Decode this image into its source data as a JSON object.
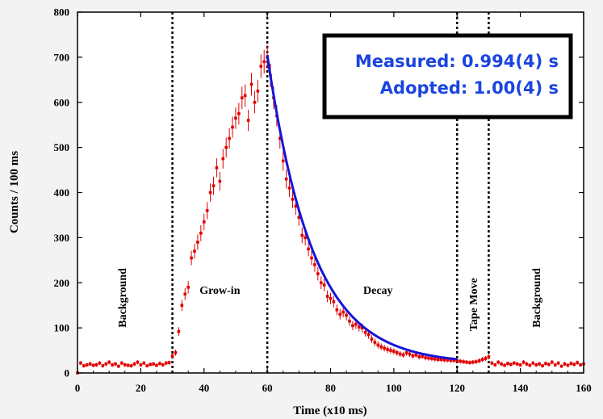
{
  "chart_data": {
    "type": "scatter",
    "title": "",
    "xlabel": "Time (x10 ms)",
    "ylabel": "Counts / 100 ms",
    "xlim": [
      0,
      160
    ],
    "ylim": [
      0,
      800
    ],
    "x_ticks": [
      0,
      20,
      40,
      60,
      80,
      100,
      120,
      140,
      160
    ],
    "y_ticks": [
      0,
      100,
      200,
      300,
      400,
      500,
      600,
      700,
      800
    ],
    "grid": false,
    "legend": "none",
    "colors": {
      "data": "#e00000",
      "fit": "#1515d8",
      "box_text": "#1a44e0"
    },
    "annotations": {
      "line1": "Measured: 0.994(4) s",
      "line2": "Adopted: 1.00(4) s"
    },
    "regions": [
      {
        "label": "Background",
        "x_center": 14,
        "vertical": true
      },
      {
        "label": "Grow-in",
        "x_center": 45,
        "vertical": false
      },
      {
        "label": "Decay",
        "x_center": 95,
        "vertical": false
      },
      {
        "label": "Tape Move",
        "x_center": 125,
        "vertical": true
      },
      {
        "label": "Background",
        "x_center": 145,
        "vertical": true
      }
    ],
    "boundaries": [
      30,
      60,
      120,
      130
    ],
    "series": [
      {
        "type": "scatter_errorbar",
        "x": [
          0,
          1,
          2,
          3,
          4,
          5,
          6,
          7,
          8,
          9,
          10,
          11,
          12,
          13,
          14,
          15,
          16,
          17,
          18,
          19,
          20,
          21,
          22,
          23,
          24,
          25,
          26,
          27,
          28,
          29,
          30,
          31,
          32,
          33,
          34,
          35,
          36,
          37,
          38,
          39,
          40,
          41,
          42,
          43,
          44,
          45,
          46,
          47,
          48,
          49,
          50,
          51,
          52,
          53,
          54,
          55,
          56,
          57,
          58,
          59,
          60,
          61,
          62,
          63,
          64,
          65,
          66,
          67,
          68,
          69,
          70,
          71,
          72,
          73,
          74,
          75,
          76,
          77,
          78,
          79,
          80,
          81,
          82,
          83,
          84,
          85,
          86,
          87,
          88,
          89,
          90,
          91,
          92,
          93,
          94,
          95,
          96,
          97,
          98,
          99,
          100,
          101,
          102,
          103,
          104,
          105,
          106,
          107,
          108,
          109,
          110,
          111,
          112,
          113,
          114,
          115,
          116,
          117,
          118,
          119,
          120,
          121,
          122,
          123,
          124,
          125,
          126,
          127,
          128,
          129,
          130,
          131,
          132,
          133,
          134,
          135,
          136,
          137,
          138,
          139,
          140,
          141,
          142,
          143,
          144,
          145,
          146,
          147,
          148,
          149,
          150,
          151,
          152,
          153,
          154,
          155,
          156,
          157,
          158,
          159,
          160
        ],
        "y": [
          0,
          22,
          16,
          18,
          20,
          17,
          18,
          22,
          16,
          20,
          24,
          18,
          20,
          15,
          22,
          18,
          17,
          16,
          20,
          24,
          18,
          22,
          16,
          19,
          20,
          17,
          21,
          18,
          22,
          23,
          38,
          45,
          92,
          150,
          175,
          190,
          255,
          270,
          290,
          310,
          335,
          360,
          400,
          415,
          455,
          425,
          475,
          500,
          520,
          545,
          565,
          575,
          610,
          615,
          560,
          640,
          600,
          625,
          680,
          690,
          700,
          660,
          610,
          570,
          520,
          470,
          430,
          410,
          385,
          370,
          345,
          305,
          300,
          275,
          255,
          240,
          220,
          200,
          195,
          170,
          165,
          158,
          140,
          130,
          135,
          128,
          115,
          105,
          108,
          102,
          100,
          90,
          85,
          75,
          68,
          62,
          58,
          55,
          52,
          50,
          48,
          45,
          42,
          40,
          45,
          42,
          38,
          40,
          36,
          37,
          34,
          33,
          32,
          31,
          30,
          30,
          29,
          29,
          28,
          28,
          27,
          26,
          25,
          24,
          23,
          24,
          25,
          27,
          30,
          32,
          36,
          22,
          18,
          24,
          20,
          17,
          21,
          19,
          22,
          20,
          18,
          24,
          20,
          17,
          22,
          18,
          20,
          16,
          21,
          19,
          24,
          18,
          22,
          15,
          20,
          17,
          21,
          19,
          23,
          18,
          20
        ]
      },
      {
        "name": "",
        "type": "exponential_fit",
        "x_range": [
          60,
          120
        ],
        "amplitude": 685,
        "halflife_x10ms": 99.4,
        "offset": 20
      }
    ]
  }
}
